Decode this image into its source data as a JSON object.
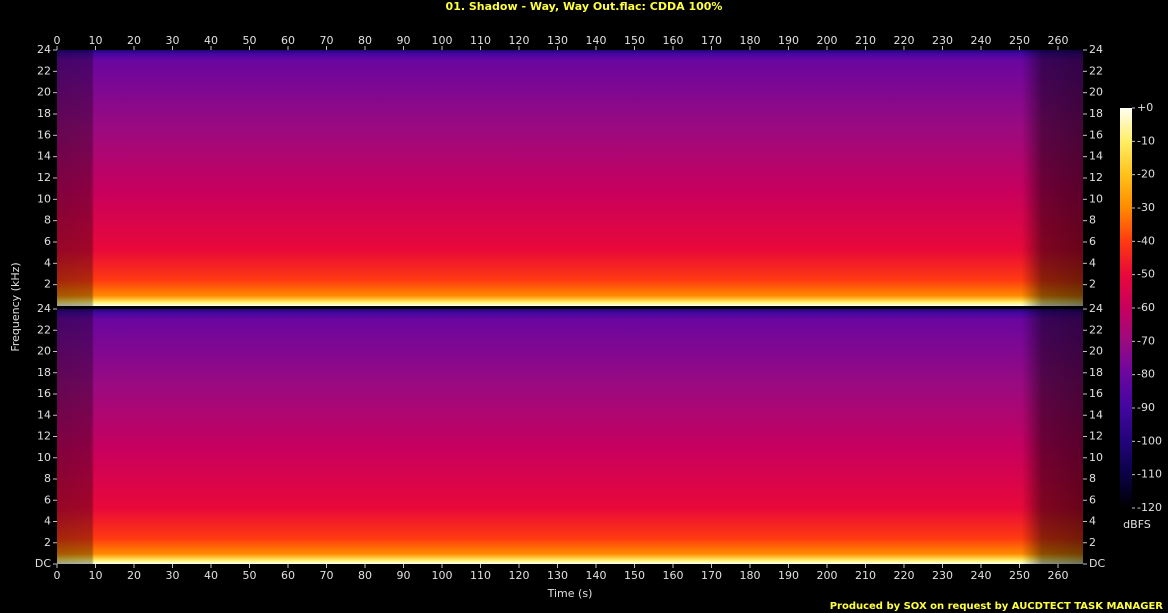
{
  "chart_data": {
    "type": "spectrogram",
    "title": "01. Shadow - Way, Way Out.flac: CDDA 100%",
    "xlabel": "Time (s)",
    "ylabel": "Frequency (kHz)",
    "xlim": [
      0,
      266.5
    ],
    "xticks": [
      0,
      10,
      20,
      30,
      40,
      50,
      60,
      70,
      80,
      90,
      100,
      110,
      120,
      130,
      140,
      150,
      160,
      170,
      180,
      190,
      200,
      210,
      220,
      230,
      240,
      250,
      260
    ],
    "ylim": [
      0,
      24
    ],
    "channels": [
      {
        "yticks": [
          2,
          4,
          6,
          8,
          10,
          12,
          14,
          16,
          18,
          20,
          22,
          24
        ]
      },
      {
        "yticks": [
          {
            "value": 0,
            "label": "DC"
          },
          2,
          4,
          6,
          8,
          10,
          12,
          14,
          16,
          18,
          20,
          22,
          24
        ]
      }
    ],
    "colorbar": {
      "label": "dBFS",
      "lim": [
        -120,
        0
      ],
      "ticks": [
        {
          "value": 0,
          "label": "+0"
        },
        -10,
        -20,
        -30,
        -40,
        -50,
        -60,
        -70,
        -80,
        -90,
        -100,
        -110,
        -120
      ],
      "colors": [
        "#fffff4",
        "#ffee66",
        "#ffc21a",
        "#ff8a00",
        "#ff3a10",
        "#e8083a",
        "#c8005e",
        "#9a0a80",
        "#6a06a0",
        "#4306a0",
        "#22047a",
        "#0a0244",
        "#000000"
      ]
    },
    "footer": "Produced by SOX on request by AUCDTECT TASK MANAGER"
  }
}
